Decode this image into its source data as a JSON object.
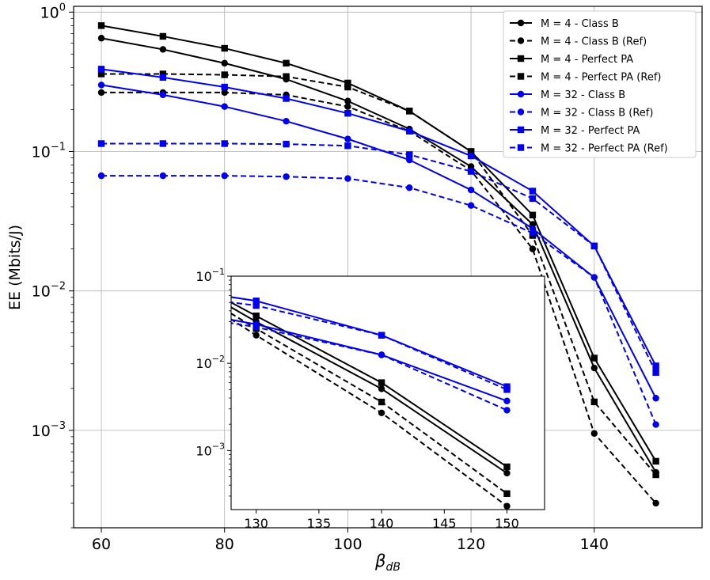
{
  "chart_data": [
    {
      "type": "line",
      "title": "",
      "xlabel": "β_dB",
      "xlabel_main": "β",
      "xlabel_sub": "dB",
      "ylabel": "EE (Mbits/J)",
      "yscale": "log",
      "xlim": [
        55.5,
        157.5
      ],
      "ylim": [
        0.0002,
        1.1
      ],
      "grid": true,
      "legend_position": "top-right",
      "x_ticks": [
        60,
        80,
        100,
        120,
        140
      ],
      "x_tick_labels": [
        "60",
        "80",
        "100",
        "120",
        "140"
      ],
      "y_ticks": [
        1,
        0.1,
        0.01,
        0.001
      ],
      "y_tick_labels": [
        {
          "base": "10",
          "exp": "0"
        },
        {
          "base": "10",
          "exp": "−1"
        },
        {
          "base": "10",
          "exp": "−2"
        },
        {
          "base": "10",
          "exp": "−3"
        }
      ],
      "series": [
        {
          "name": "M = 4 - Class B",
          "color": "#000000",
          "dash": "solid",
          "marker": "circle",
          "x": [
            60,
            70,
            80,
            90,
            100,
            110,
            120,
            130,
            140,
            150
          ],
          "y": [
            0.65,
            0.54,
            0.43,
            0.33,
            0.23,
            0.145,
            0.078,
            0.03,
            0.0028,
            0.0005
          ]
        },
        {
          "name": "M = 4 - Class B (Ref)",
          "color": "#000000",
          "dash": "dashed",
          "marker": "circle",
          "x": [
            60,
            70,
            80,
            90,
            100,
            110,
            120,
            130,
            140,
            150
          ],
          "y": [
            0.265,
            0.265,
            0.265,
            0.255,
            0.21,
            0.14,
            0.073,
            0.02,
            0.00095,
            0.0003
          ]
        },
        {
          "name": "M = 4 - Perfect PA",
          "color": "#000000",
          "dash": "solid",
          "marker": "square",
          "x": [
            60,
            70,
            80,
            90,
            100,
            110,
            120,
            130,
            140,
            150
          ],
          "y": [
            0.8,
            0.67,
            0.55,
            0.43,
            0.31,
            0.195,
            0.1,
            0.035,
            0.0033,
            0.0006
          ]
        },
        {
          "name": "M = 4 - Perfect PA (Ref)",
          "color": "#000000",
          "dash": "dashed",
          "marker": "square",
          "x": [
            60,
            70,
            80,
            90,
            100,
            110,
            120,
            130,
            140,
            150
          ],
          "y": [
            0.36,
            0.36,
            0.355,
            0.345,
            0.29,
            0.195,
            0.1,
            0.025,
            0.0016,
            0.00048
          ]
        },
        {
          "name": "M = 32 - Class B",
          "color": "#0000ee",
          "dash": "solid",
          "marker": "circle",
          "x": [
            60,
            70,
            80,
            90,
            100,
            110,
            120,
            130,
            140,
            150
          ],
          "y": [
            0.3,
            0.255,
            0.21,
            0.165,
            0.123,
            0.087,
            0.053,
            0.028,
            0.0125,
            0.0017
          ]
        },
        {
          "name": "M = 32 - Class B (Ref)",
          "color": "#0000ee",
          "dash": "dashed",
          "marker": "circle",
          "x": [
            60,
            70,
            80,
            90,
            100,
            110,
            120,
            130,
            140,
            150
          ],
          "y": [
            0.067,
            0.067,
            0.067,
            0.066,
            0.064,
            0.055,
            0.041,
            0.026,
            0.0125,
            0.0011
          ]
        },
        {
          "name": "M = 32 - Perfect PA",
          "color": "#0000ee",
          "dash": "solid",
          "marker": "square",
          "x": [
            60,
            70,
            80,
            90,
            100,
            110,
            120,
            130,
            140,
            150
          ],
          "y": [
            0.39,
            0.34,
            0.29,
            0.24,
            0.188,
            0.14,
            0.093,
            0.052,
            0.021,
            0.0029
          ]
        },
        {
          "name": "M = 32 - Perfect PA (Ref)",
          "color": "#0000ee",
          "dash": "dashed",
          "marker": "square",
          "x": [
            60,
            70,
            80,
            90,
            100,
            110,
            120,
            130,
            140,
            150
          ],
          "y": [
            0.114,
            0.114,
            0.114,
            0.113,
            0.11,
            0.095,
            0.072,
            0.046,
            0.021,
            0.0026
          ]
        }
      ]
    },
    {
      "type": "line",
      "title": "",
      "xlabel": "",
      "ylabel": "",
      "yscale": "log",
      "xlim": [
        128,
        153
      ],
      "ylim": [
        0.00021,
        0.1
      ],
      "grid": false,
      "x_ticks": [
        130,
        135,
        140,
        145,
        150
      ],
      "x_tick_labels": [
        "130",
        "135",
        "140",
        "145",
        "150"
      ],
      "y_ticks": [
        0.1,
        0.01,
        0.001
      ],
      "y_tick_labels": [
        {
          "base": "10",
          "exp": "−1"
        },
        {
          "base": "10",
          "exp": "−2"
        },
        {
          "base": "10",
          "exp": "−3"
        }
      ],
      "series": [
        {
          "name": "M = 4 - Class B",
          "color": "#000000",
          "dash": "solid",
          "marker": "circle",
          "x": [
            125,
            130,
            140,
            150
          ],
          "y": [
            0.078,
            0.03,
            0.0051,
            0.00055
          ]
        },
        {
          "name": "M = 4 - Class B (Ref)",
          "color": "#000000",
          "dash": "dashed",
          "marker": "circle",
          "x": [
            125,
            130,
            140,
            150
          ],
          "y": [
            0.06,
            0.021,
            0.0027,
            0.00023
          ]
        },
        {
          "name": "M = 4 - Perfect PA",
          "color": "#000000",
          "dash": "solid",
          "marker": "square",
          "x": [
            125,
            130,
            140,
            150
          ],
          "y": [
            0.085,
            0.035,
            0.006,
            0.00065
          ]
        },
        {
          "name": "M = 4 - Perfect PA (Ref)",
          "color": "#000000",
          "dash": "dashed",
          "marker": "square",
          "x": [
            125,
            130,
            140,
            150
          ],
          "y": [
            0.068,
            0.025,
            0.0036,
            0.00032
          ]
        },
        {
          "name": "M = 32 - Class B",
          "color": "#0000ee",
          "dash": "solid",
          "marker": "circle",
          "x": [
            125,
            130,
            140,
            150
          ],
          "y": [
            0.038,
            0.028,
            0.0125,
            0.0037
          ]
        },
        {
          "name": "M = 32 - Class B (Ref)",
          "color": "#0000ee",
          "dash": "dashed",
          "marker": "circle",
          "x": [
            125,
            130,
            140,
            150
          ],
          "y": [
            0.034,
            0.026,
            0.0125,
            0.0029
          ]
        },
        {
          "name": "M = 32 - Perfect PA",
          "color": "#0000ee",
          "dash": "solid",
          "marker": "square",
          "x": [
            125,
            130,
            140,
            150
          ],
          "y": [
            0.067,
            0.052,
            0.021,
            0.0054
          ]
        },
        {
          "name": "M = 32 - Perfect PA (Ref)",
          "color": "#0000ee",
          "dash": "dashed",
          "marker": "square",
          "x": [
            125,
            130,
            140,
            150
          ],
          "y": [
            0.057,
            0.046,
            0.021,
            0.005
          ]
        }
      ]
    }
  ]
}
